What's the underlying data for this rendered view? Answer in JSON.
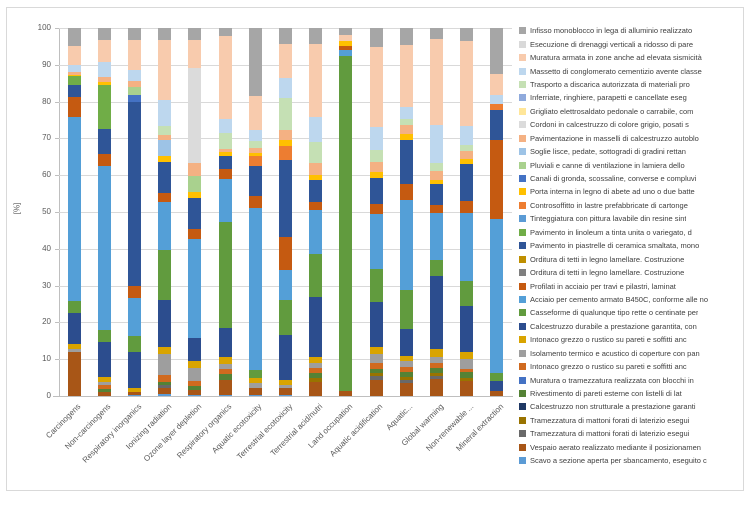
{
  "page": {
    "background": "#FFFFFF",
    "frame_border_color": "#D9D9D9"
  },
  "colors": {
    "axis": "#BFBFBF",
    "grid": "#D9D9D9",
    "tick_label": "#595959",
    "legend_text": "#404040"
  },
  "chart_data": {
    "type": "bar",
    "subtype": "stacked-100-percent",
    "title": "",
    "xlabel": "",
    "ylabel": "[%]",
    "ylim": [
      0,
      100
    ],
    "yticks": [
      0,
      10,
      20,
      30,
      40,
      50,
      60,
      70,
      80,
      90,
      100
    ],
    "grid": true,
    "legend_position": "right",
    "categories": [
      "Carcinogens",
      "Non-carcinogens",
      "Respiratory inorganics",
      "Ionizing radiation",
      "Ozone layer depletion",
      "Respiratory organics",
      "Aquatic ecotoxicity",
      "Terrestrial ecotoxicity",
      "Terrestrial acid/nutri",
      "Land occupation",
      "Aquatic acidification",
      "Aquatic...",
      "Global warming",
      "Non-renewable ...",
      "Mineral extraction"
    ],
    "series": [
      {
        "name": "Infisso monoblocco in lega di alluminio realizzato",
        "color": "#A6A6A6"
      },
      {
        "name": "Esecuzione di drenaggi  verticali a ridosso  di pare",
        "color": "#D9D9D9"
      },
      {
        "name": "Muratura armata  in zone anche ad elevata sismicità",
        "color": "#F8CBAD"
      },
      {
        "name": "Massetto di conglomerato cementizio avente  classe",
        "color": "#BDD7EE"
      },
      {
        "name": "Trasporto  a discarica autorizzata  di materiali pro",
        "color": "#C5E0B4"
      },
      {
        "name": "Inferriate, ringhiere, parapetti e cancellate eseg",
        "color": "#8FAADC"
      },
      {
        "name": "Grigliato  elettrosaldato pedonale o  carrabile, com",
        "color": "#FFE699"
      },
      {
        "name": "Cordoni in calcestruzzo  di colore grigio, posati s",
        "color": "#DBDBDB"
      },
      {
        "name": "Pavimentazione in masselli di calcestruzzo  autoblo",
        "color": "#F4B183"
      },
      {
        "name": "Soglie lisce, pedate, sottogradi di gradini rettan",
        "color": "#9DC3E6"
      },
      {
        "name": "Pluviali e canne di ventilazione in lamiera dello",
        "color": "#A9D18E"
      },
      {
        "name": "Canali di gronda, scossaline, converse e compluvi",
        "color": "#4472C4"
      },
      {
        "name": "Porta interna in legno di abete ad  uno o due batte",
        "color": "#FFC000"
      },
      {
        "name": "Controsoffitto in lastre prefabbricate di cartonge",
        "color": "#ED7D31"
      },
      {
        "name": "Tinteggiatura con pittura lavabile din resine sint",
        "color": "#5B9BD5"
      },
      {
        "name": "Pavimento in linoleum a tinta unita o variegato, d",
        "color": "#70AD47"
      },
      {
        "name": "Pavimento in piastrelle di ceramica smaltata, mono",
        "color": "#2F5597"
      },
      {
        "name": "Orditura di tetti in legno lamellare. Costruzione",
        "color": "#BF8F00"
      },
      {
        "name": "Orditura di tetti in legno lamellare. Costruzione",
        "color": "#7F7F7F"
      },
      {
        "name": "Profilati in acciaio per travi e pilastri, laminat",
        "color": "#C55A11"
      },
      {
        "name": "Acciaio per cemento armato  B450C, conforme alle no",
        "color": "#549FD7"
      },
      {
        "name": "Casseforme di qualunque tipo rette o centinate per",
        "color": "#619B3E"
      },
      {
        "name": "Calcestruzzo durabile a prestazione garantita, con",
        "color": "#2C4D8E"
      },
      {
        "name": "Intonaco grezzo  o rustico su  pareti e soffitti anc",
        "color": "#D9A400"
      },
      {
        "name": "Isolamento termico e acustico di coperture con pan",
        "color": "#9E9E9E"
      },
      {
        "name": "Intonaco grezzo  o rustico su  pareti e soffitti anc",
        "color": "#D06A1F"
      },
      {
        "name": "Muratura o tramezzatura  realizzata  con blocchi in",
        "color": "#4472C4"
      },
      {
        "name": "Rivestimento di pareti esterne con listelli di lat",
        "color": "#548235"
      },
      {
        "name": "Calcestruzzo non  strutturale a prestazione garanti",
        "color": "#1F3864"
      },
      {
        "name": "Tramezzatura  di mattoni forati  di laterizio esegui",
        "color": "#997300"
      },
      {
        "name": "Tramezzatura  di mattoni forati  di laterizio esegui",
        "color": "#696969"
      },
      {
        "name": "Vespaio aerato  realizzato mediante  il posizionamen",
        "color": "#A85617"
      },
      {
        "name": "Scavo a sezione aperta per sbancamento, eseguito c",
        "color": "#5B9BD5"
      }
    ],
    "stacks_note": "segments listed TOP to BOTTOM as [series_index_1based, percent]",
    "stacks": [
      {
        "category": "Carcinogens",
        "segments": [
          [
            1,
            5.0
          ],
          [
            3,
            5.0
          ],
          [
            4,
            2.0
          ],
          [
            9,
            0.7
          ],
          [
            13,
            0.5
          ],
          [
            16,
            2.2
          ],
          [
            17,
            3.4
          ],
          [
            20,
            5.4
          ],
          [
            21,
            50.2
          ],
          [
            22,
            3.2
          ],
          [
            23,
            8.5
          ],
          [
            24,
            1.2
          ],
          [
            25,
            0.8
          ],
          [
            32,
            12.1
          ]
        ]
      },
      {
        "category": "Non-carcinogens",
        "segments": [
          [
            1,
            3.3
          ],
          [
            3,
            6.0
          ],
          [
            4,
            4.0
          ],
          [
            9,
            1.4
          ],
          [
            13,
            0.9
          ],
          [
            16,
            11.8
          ],
          [
            17,
            6.8
          ],
          [
            20,
            3.2
          ],
          [
            21,
            44.6
          ],
          [
            22,
            3.2
          ],
          [
            23,
            9.5
          ],
          [
            24,
            1.5
          ],
          [
            25,
            0.7
          ],
          [
            26,
            1.1
          ],
          [
            28,
            0.9
          ],
          [
            32,
            1.1
          ]
        ]
      },
      {
        "category": "Respiratory inorganics",
        "segments": [
          [
            1,
            3.2
          ],
          [
            3,
            8.1
          ],
          [
            4,
            3.2
          ],
          [
            9,
            1.4
          ],
          [
            11,
            2.3
          ],
          [
            12,
            1.8
          ],
          [
            17,
            50.2
          ],
          [
            20,
            3.2
          ],
          [
            21,
            10.4
          ],
          [
            22,
            4.2
          ],
          [
            23,
            9.7
          ],
          [
            24,
            1.1
          ],
          [
            32,
            0.8
          ],
          [
            33,
            0.4
          ]
        ]
      },
      {
        "category": "Ionizing radiation",
        "segments": [
          [
            1,
            3.2
          ],
          [
            3,
            16.3
          ],
          [
            4,
            7.2
          ],
          [
            5,
            2.3
          ],
          [
            9,
            1.4
          ],
          [
            10,
            4.5
          ],
          [
            13,
            1.4
          ],
          [
            17,
            8.6
          ],
          [
            20,
            2.3
          ],
          [
            21,
            13.1
          ],
          [
            22,
            13.6
          ],
          [
            23,
            12.7
          ],
          [
            24,
            2.0
          ],
          [
            25,
            5.7
          ],
          [
            26,
            1.8
          ],
          [
            28,
            1.0
          ],
          [
            31,
            0.7
          ],
          [
            32,
            1.7
          ],
          [
            33,
            0.5
          ]
        ]
      },
      {
        "category": "Ozone layer depletion",
        "segments": [
          [
            1,
            3.3
          ],
          [
            3,
            7.5
          ],
          [
            8,
            25.8
          ],
          [
            9,
            3.6
          ],
          [
            11,
            4.5
          ],
          [
            13,
            1.6
          ],
          [
            17,
            8.3
          ],
          [
            20,
            2.7
          ],
          [
            21,
            27.0
          ],
          [
            23,
            6.3
          ],
          [
            24,
            1.8
          ],
          [
            25,
            3.6
          ],
          [
            26,
            1.2
          ],
          [
            28,
            1.1
          ],
          [
            32,
            1.5
          ],
          [
            33,
            0.2
          ]
        ]
      },
      {
        "category": "Respiratory organics",
        "segments": [
          [
            1,
            2.3
          ],
          [
            3,
            22.6
          ],
          [
            4,
            3.6
          ],
          [
            5,
            4.5
          ],
          [
            9,
            0.9
          ],
          [
            13,
            0.9
          ],
          [
            17,
            3.6
          ],
          [
            20,
            2.7
          ],
          [
            21,
            11.8
          ],
          [
            22,
            29.0
          ],
          [
            23,
            7.9
          ],
          [
            24,
            1.8
          ],
          [
            25,
            1.4
          ],
          [
            26,
            1.4
          ],
          [
            28,
            1.4
          ],
          [
            32,
            4.1
          ],
          [
            33,
            0.4
          ]
        ]
      },
      {
        "category": "Aquatic ecotoxicity",
        "segments": [
          [
            1,
            18.6
          ],
          [
            3,
            9.0
          ],
          [
            4,
            3.2
          ],
          [
            5,
            1.8
          ],
          [
            9,
            1.4
          ],
          [
            13,
            0.9
          ],
          [
            14,
            2.7
          ],
          [
            17,
            8.1
          ],
          [
            20,
            3.2
          ],
          [
            21,
            44.0
          ],
          [
            22,
            2.2
          ],
          [
            24,
            1.4
          ],
          [
            25,
            1.3
          ],
          [
            32,
            1.8
          ],
          [
            33,
            0.4
          ]
        ]
      },
      {
        "category": "Terrestrial ecotoxicity",
        "segments": [
          [
            1,
            4.4
          ],
          [
            3,
            9.3
          ],
          [
            4,
            5.4
          ],
          [
            5,
            8.6
          ],
          [
            9,
            2.7
          ],
          [
            13,
            1.6
          ],
          [
            14,
            3.8
          ],
          [
            17,
            20.9
          ],
          [
            20,
            9.0
          ],
          [
            21,
            8.1
          ],
          [
            22,
            9.5
          ],
          [
            23,
            12.4
          ],
          [
            24,
            1.3
          ],
          [
            25,
            0.7
          ],
          [
            32,
            2.0
          ],
          [
            33,
            0.3
          ]
        ]
      },
      {
        "category": "Terrestrial acid/nutri",
        "segments": [
          [
            1,
            4.3
          ],
          [
            3,
            19.9
          ],
          [
            4,
            6.8
          ],
          [
            5,
            5.9
          ],
          [
            9,
            3.2
          ],
          [
            13,
            1.4
          ],
          [
            17,
            5.9
          ],
          [
            20,
            2.3
          ],
          [
            21,
            11.8
          ],
          [
            22,
            11.8
          ],
          [
            23,
            16.3
          ],
          [
            24,
            1.8
          ],
          [
            25,
            1.4
          ],
          [
            26,
            1.3
          ],
          [
            28,
            1.2
          ],
          [
            30,
            1.1
          ],
          [
            32,
            3.9
          ]
        ]
      },
      {
        "category": "Land occupation",
        "segments": [
          [
            1,
            2.0
          ],
          [
            3,
            1.4
          ],
          [
            13,
            1.6
          ],
          [
            20,
            1.1
          ],
          [
            21,
            1.4
          ],
          [
            22,
            91.2
          ],
          [
            32,
            1.3
          ]
        ]
      },
      {
        "category": "Aquatic acidification",
        "segments": [
          [
            1,
            5.2
          ],
          [
            3,
            21.7
          ],
          [
            4,
            6.3
          ],
          [
            5,
            3.2
          ],
          [
            9,
            2.7
          ],
          [
            13,
            1.5
          ],
          [
            17,
            7.1
          ],
          [
            20,
            2.7
          ],
          [
            21,
            14.9
          ],
          [
            22,
            9.0
          ],
          [
            23,
            12.4
          ],
          [
            24,
            1.8
          ],
          [
            25,
            2.4
          ],
          [
            26,
            1.6
          ],
          [
            28,
            1.2
          ],
          [
            30,
            0.9
          ],
          [
            31,
            0.9
          ],
          [
            32,
            4.4
          ]
        ]
      },
      {
        "category": "Aquatic...",
        "segments": [
          [
            1,
            4.7
          ],
          [
            3,
            16.7
          ],
          [
            4,
            3.2
          ],
          [
            5,
            1.8
          ],
          [
            9,
            2.3
          ],
          [
            13,
            1.8
          ],
          [
            17,
            11.8
          ],
          [
            20,
            4.5
          ],
          [
            21,
            24.5
          ],
          [
            22,
            10.5
          ],
          [
            23,
            7.4
          ],
          [
            24,
            1.2
          ],
          [
            25,
            1.8
          ],
          [
            26,
            1.2
          ],
          [
            28,
            1.3
          ],
          [
            30,
            0.9
          ],
          [
            31,
            0.9
          ],
          [
            32,
            3.5
          ]
        ]
      },
      {
        "category": "Global warming",
        "segments": [
          [
            1,
            2.9
          ],
          [
            3,
            23.5
          ],
          [
            4,
            10.4
          ],
          [
            5,
            2.0
          ],
          [
            9,
            2.4
          ],
          [
            13,
            1.1
          ],
          [
            17,
            5.9
          ],
          [
            20,
            2.1
          ],
          [
            21,
            12.7
          ],
          [
            22,
            4.3
          ],
          [
            23,
            19.9
          ],
          [
            24,
            2.2
          ],
          [
            25,
            1.5
          ],
          [
            26,
            1.5
          ],
          [
            28,
            1.3
          ],
          [
            30,
            0.9
          ],
          [
            31,
            0.9
          ],
          [
            32,
            4.5
          ]
        ]
      },
      {
        "category": "Non-renewable ...",
        "segments": [
          [
            1,
            3.5
          ],
          [
            3,
            23.3
          ],
          [
            4,
            5.2
          ],
          [
            5,
            1.5
          ],
          [
            9,
            2.3
          ],
          [
            13,
            1.4
          ],
          [
            17,
            10.0
          ],
          [
            20,
            3.2
          ],
          [
            21,
            18.6
          ],
          [
            22,
            6.8
          ],
          [
            23,
            12.6
          ],
          [
            24,
            1.8
          ],
          [
            25,
            2.7
          ],
          [
            26,
            0.8
          ],
          [
            28,
            1.8
          ],
          [
            30,
            0.6
          ],
          [
            32,
            4.2
          ]
        ]
      },
      {
        "category": "Mineral extraction",
        "segments": [
          [
            1,
            12.4
          ],
          [
            3,
            5.9
          ],
          [
            4,
            2.3
          ],
          [
            14,
            1.8
          ],
          [
            17,
            8.1
          ],
          [
            20,
            21.3
          ],
          [
            21,
            42.0
          ],
          [
            22,
            2.0
          ],
          [
            23,
            2.9
          ],
          [
            32,
            1.3
          ]
        ]
      }
    ]
  }
}
